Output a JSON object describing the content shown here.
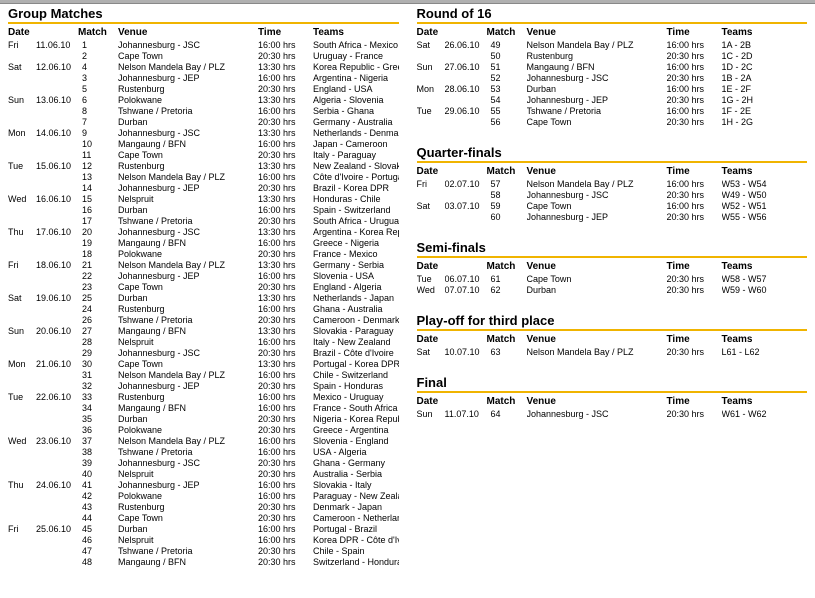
{
  "headers": {
    "date": "Date",
    "match": "Match",
    "venue": "Venue",
    "time": "Time",
    "teams": "Teams"
  },
  "styles": {
    "accent": "#f0b400",
    "topbar": "#b0b0b0",
    "font_body": "Arial",
    "font_heading": "Trebuchet MS",
    "heading_fontsize": 13,
    "body_fontsize": 9,
    "col_widths": {
      "day": 28,
      "date": 42,
      "match": 40,
      "venue": 140,
      "time": 55
    }
  },
  "sections": [
    {
      "title": "Group Matches",
      "column": "left",
      "rows": [
        {
          "day": "Fri",
          "date": "11.06.10",
          "match": 1,
          "venue": "Johannesburg - JSC",
          "time": "16:00 hrs",
          "teams": "South Africa - Mexico"
        },
        {
          "day": "",
          "date": "",
          "match": 2,
          "venue": "Cape Town",
          "time": "20:30 hrs",
          "teams": "Uruguay - France"
        },
        {
          "day": "Sat",
          "date": "12.06.10",
          "match": 4,
          "venue": "Nelson Mandela Bay / PLZ",
          "time": "13:30 hrs",
          "teams": "Korea Republic - Greece"
        },
        {
          "day": "",
          "date": "",
          "match": 3,
          "venue": "Johannesburg - JEP",
          "time": "16:00 hrs",
          "teams": "Argentina - Nigeria"
        },
        {
          "day": "",
          "date": "",
          "match": 5,
          "venue": "Rustenburg",
          "time": "20:30 hrs",
          "teams": "England - USA"
        },
        {
          "day": "Sun",
          "date": "13.06.10",
          "match": 6,
          "venue": "Polokwane",
          "time": "13:30 hrs",
          "teams": "Algeria - Slovenia"
        },
        {
          "day": "",
          "date": "",
          "match": 8,
          "venue": "Tshwane / Pretoria",
          "time": "16:00 hrs",
          "teams": "Serbia - Ghana"
        },
        {
          "day": "",
          "date": "",
          "match": 7,
          "venue": "Durban",
          "time": "20:30 hrs",
          "teams": "Germany - Australia"
        },
        {
          "day": "Mon",
          "date": "14.06.10",
          "match": 9,
          "venue": "Johannesburg - JSC",
          "time": "13:30 hrs",
          "teams": "Netherlands - Denmark"
        },
        {
          "day": "",
          "date": "",
          "match": 10,
          "venue": "Mangaung / BFN",
          "time": "16:00 hrs",
          "teams": "Japan - Cameroon"
        },
        {
          "day": "",
          "date": "",
          "match": 11,
          "venue": "Cape Town",
          "time": "20:30 hrs",
          "teams": "Italy - Paraguay"
        },
        {
          "day": "Tue",
          "date": "15.06.10",
          "match": 12,
          "venue": "Rustenburg",
          "time": "13:30 hrs",
          "teams": "New Zealand - Slovakia"
        },
        {
          "day": "",
          "date": "",
          "match": 13,
          "venue": "Nelson Mandela Bay / PLZ",
          "time": "16:00 hrs",
          "teams": "Côte d'Ivoire - Portugal"
        },
        {
          "day": "",
          "date": "",
          "match": 14,
          "venue": "Johannesburg - JEP",
          "time": "20:30 hrs",
          "teams": "Brazil - Korea DPR"
        },
        {
          "day": "Wed",
          "date": "16.06.10",
          "match": 15,
          "venue": "Nelspruit",
          "time": "13:30 hrs",
          "teams": "Honduras - Chile"
        },
        {
          "day": "",
          "date": "",
          "match": 16,
          "venue": "Durban",
          "time": "16:00 hrs",
          "teams": "Spain - Switzerland"
        },
        {
          "day": "",
          "date": "",
          "match": 17,
          "venue": "Tshwane / Pretoria",
          "time": "20:30 hrs",
          "teams": "South Africa - Uruguay"
        },
        {
          "day": "Thu",
          "date": "17.06.10",
          "match": 20,
          "venue": "Johannesburg - JSC",
          "time": "13:30 hrs",
          "teams": "Argentina - Korea Republic"
        },
        {
          "day": "",
          "date": "",
          "match": 19,
          "venue": "Mangaung / BFN",
          "time": "16:00 hrs",
          "teams": "Greece - Nigeria"
        },
        {
          "day": "",
          "date": "",
          "match": 18,
          "venue": "Polokwane",
          "time": "20:30 hrs",
          "teams": "France - Mexico"
        },
        {
          "day": "Fri",
          "date": "18.06.10",
          "match": 21,
          "venue": "Nelson Mandela Bay / PLZ",
          "time": "13:30 hrs",
          "teams": "Germany - Serbia"
        },
        {
          "day": "",
          "date": "",
          "match": 22,
          "venue": "Johannesburg - JEP",
          "time": "16:00 hrs",
          "teams": "Slovenia - USA"
        },
        {
          "day": "",
          "date": "",
          "match": 23,
          "venue": "Cape Town",
          "time": "20:30 hrs",
          "teams": "England - Algeria"
        },
        {
          "day": "Sat",
          "date": "19.06.10",
          "match": 25,
          "venue": "Durban",
          "time": "13:30 hrs",
          "teams": "Netherlands - Japan"
        },
        {
          "day": "",
          "date": "",
          "match": 24,
          "venue": "Rustenburg",
          "time": "16:00 hrs",
          "teams": "Ghana - Australia"
        },
        {
          "day": "",
          "date": "",
          "match": 26,
          "venue": "Tshwane / Pretoria",
          "time": "20:30 hrs",
          "teams": "Cameroon - Denmark"
        },
        {
          "day": "Sun",
          "date": "20.06.10",
          "match": 27,
          "venue": "Mangaung / BFN",
          "time": "13:30 hrs",
          "teams": "Slovakia - Paraguay"
        },
        {
          "day": "",
          "date": "",
          "match": 28,
          "venue": "Nelspruit",
          "time": "16:00 hrs",
          "teams": "Italy - New Zealand"
        },
        {
          "day": "",
          "date": "",
          "match": 29,
          "venue": "Johannesburg - JSC",
          "time": "20:30 hrs",
          "teams": "Brazil - Côte d'Ivoire"
        },
        {
          "day": "Mon",
          "date": "21.06.10",
          "match": 30,
          "venue": "Cape Town",
          "time": "13:30 hrs",
          "teams": "Portugal - Korea DPR"
        },
        {
          "day": "",
          "date": "",
          "match": 31,
          "venue": "Nelson Mandela Bay / PLZ",
          "time": "16:00 hrs",
          "teams": "Chile - Switzerland"
        },
        {
          "day": "",
          "date": "",
          "match": 32,
          "venue": "Johannesburg - JEP",
          "time": "20:30 hrs",
          "teams": "Spain - Honduras"
        },
        {
          "day": "Tue",
          "date": "22.06.10",
          "match": 33,
          "venue": "Rustenburg",
          "time": "16:00 hrs",
          "teams": "Mexico - Uruguay"
        },
        {
          "day": "",
          "date": "",
          "match": 34,
          "venue": "Mangaung / BFN",
          "time": "16:00 hrs",
          "teams": "France - South Africa"
        },
        {
          "day": "",
          "date": "",
          "match": 35,
          "venue": "Durban",
          "time": "20:30 hrs",
          "teams": "Nigeria - Korea Republic"
        },
        {
          "day": "",
          "date": "",
          "match": 36,
          "venue": "Polokwane",
          "time": "20:30 hrs",
          "teams": "Greece - Argentina"
        },
        {
          "day": "Wed",
          "date": "23.06.10",
          "match": 37,
          "venue": "Nelson Mandela Bay / PLZ",
          "time": "16:00 hrs",
          "teams": "Slovenia - England"
        },
        {
          "day": "",
          "date": "",
          "match": 38,
          "venue": "Tshwane / Pretoria",
          "time": "16:00 hrs",
          "teams": "USA - Algeria"
        },
        {
          "day": "",
          "date": "",
          "match": 39,
          "venue": "Johannesburg - JSC",
          "time": "20:30 hrs",
          "teams": "Ghana - Germany"
        },
        {
          "day": "",
          "date": "",
          "match": 40,
          "venue": "Nelspruit",
          "time": "20:30 hrs",
          "teams": "Australia - Serbia"
        },
        {
          "day": "Thu",
          "date": "24.06.10",
          "match": 41,
          "venue": "Johannesburg - JEP",
          "time": "16:00 hrs",
          "teams": "Slovakia - Italy"
        },
        {
          "day": "",
          "date": "",
          "match": 42,
          "venue": "Polokwane",
          "time": "16:00 hrs",
          "teams": "Paraguay - New Zealand"
        },
        {
          "day": "",
          "date": "",
          "match": 43,
          "venue": "Rustenburg",
          "time": "20:30 hrs",
          "teams": "Denmark - Japan"
        },
        {
          "day": "",
          "date": "",
          "match": 44,
          "venue": "Cape Town",
          "time": "20:30 hrs",
          "teams": "Cameroon - Netherlands"
        },
        {
          "day": "Fri",
          "date": "25.06.10",
          "match": 45,
          "venue": "Durban",
          "time": "16:00 hrs",
          "teams": "Portugal - Brazil"
        },
        {
          "day": "",
          "date": "",
          "match": 46,
          "venue": "Nelspruit",
          "time": "16:00 hrs",
          "teams": "Korea DPR - Côte d'Ivoire"
        },
        {
          "day": "",
          "date": "",
          "match": 47,
          "venue": "Tshwane / Pretoria",
          "time": "20:30 hrs",
          "teams": "Chile - Spain"
        },
        {
          "day": "",
          "date": "",
          "match": 48,
          "venue": "Mangaung / BFN",
          "time": "20:30 hrs",
          "teams": "Switzerland - Honduras"
        }
      ]
    },
    {
      "title": "Round of 16",
      "column": "right",
      "rows": [
        {
          "day": "Sat",
          "date": "26.06.10",
          "match": 49,
          "venue": "Nelson Mandela Bay / PLZ",
          "time": "16:00 hrs",
          "teams": "1A - 2B"
        },
        {
          "day": "",
          "date": "",
          "match": 50,
          "venue": "Rustenburg",
          "time": "20:30 hrs",
          "teams": "1C - 2D"
        },
        {
          "day": "Sun",
          "date": "27.06.10",
          "match": 51,
          "venue": "Mangaung / BFN",
          "time": "16:00 hrs",
          "teams": "1D - 2C"
        },
        {
          "day": "",
          "date": "",
          "match": 52,
          "venue": "Johannesburg - JSC",
          "time": "20:30 hrs",
          "teams": "1B - 2A"
        },
        {
          "day": "Mon",
          "date": "28.06.10",
          "match": 53,
          "venue": "Durban",
          "time": "16:00 hrs",
          "teams": "1E - 2F"
        },
        {
          "day": "",
          "date": "",
          "match": 54,
          "venue": "Johannesburg - JEP",
          "time": "20:30 hrs",
          "teams": "1G - 2H"
        },
        {
          "day": "Tue",
          "date": "29.06.10",
          "match": 55,
          "venue": "Tshwane / Pretoria",
          "time": "16:00 hrs",
          "teams": "1F - 2E"
        },
        {
          "day": "",
          "date": "",
          "match": 56,
          "venue": "Cape Town",
          "time": "20:30 hrs",
          "teams": "1H - 2G"
        }
      ]
    },
    {
      "title": "Quarter-finals",
      "column": "right",
      "rows": [
        {
          "day": "Fri",
          "date": "02.07.10",
          "match": 57,
          "venue": "Nelson Mandela Bay / PLZ",
          "time": "16:00 hrs",
          "teams": "W53 - W54"
        },
        {
          "day": "",
          "date": "",
          "match": 58,
          "venue": "Johannesburg - JSC",
          "time": "20:30 hrs",
          "teams": "W49 - W50"
        },
        {
          "day": "Sat",
          "date": "03.07.10",
          "match": 59,
          "venue": "Cape Town",
          "time": "16:00 hrs",
          "teams": "W52 - W51"
        },
        {
          "day": "",
          "date": "",
          "match": 60,
          "venue": "Johannesburg - JEP",
          "time": "20:30 hrs",
          "teams": "W55 - W56"
        }
      ]
    },
    {
      "title": "Semi-finals",
      "column": "right",
      "rows": [
        {
          "day": "Tue",
          "date": "06.07.10",
          "match": 61,
          "venue": "Cape Town",
          "time": "20:30 hrs",
          "teams": "W58 - W57"
        },
        {
          "day": "Wed",
          "date": "07.07.10",
          "match": 62,
          "venue": "Durban",
          "time": "20:30 hrs",
          "teams": "W59 - W60"
        }
      ]
    },
    {
      "title": "Play-off for third place",
      "column": "right",
      "rows": [
        {
          "day": "Sat",
          "date": "10.07.10",
          "match": 63,
          "venue": "Nelson Mandela Bay / PLZ",
          "time": "20:30 hrs",
          "teams": "L61 - L62"
        }
      ]
    },
    {
      "title": "Final",
      "column": "right",
      "rows": [
        {
          "day": "Sun",
          "date": "11.07.10",
          "match": 64,
          "venue": "Johannesburg - JSC",
          "time": "20:30 hrs",
          "teams": "W61 - W62"
        }
      ]
    }
  ]
}
